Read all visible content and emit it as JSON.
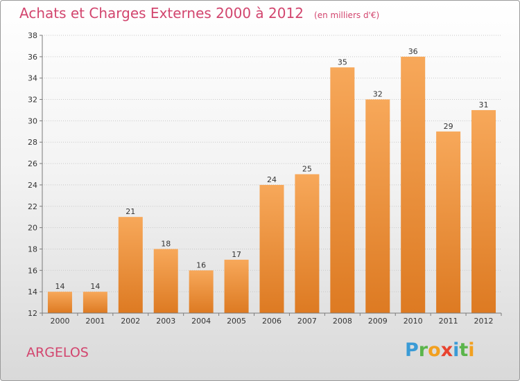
{
  "title": "Achats et Charges Externes 2000 à 2012",
  "unit_label": "(en milliers d'€)",
  "commune": "ARGELOS",
  "logo": {
    "letters": [
      {
        "ch": "P",
        "color": "#3a9bd6"
      },
      {
        "ch": "r",
        "color": "#5ab54b"
      },
      {
        "ch": "o",
        "color": "#f2a01f"
      },
      {
        "ch": "x",
        "color": "#e8432f"
      },
      {
        "ch": "i",
        "color": "#3a9bd6"
      },
      {
        "ch": "t",
        "color": "#5ab54b"
      },
      {
        "ch": "i",
        "color": "#f2a01f"
      }
    ]
  },
  "colors": {
    "title": "#d2456e",
    "bar_light": "#f7a85a",
    "bar_dark": "#dd7a22",
    "grid": "#c8c8c8",
    "axis": "#7a7a7a"
  },
  "chart_data": {
    "type": "bar",
    "categories": [
      "2000",
      "2001",
      "2002",
      "2003",
      "2004",
      "2005",
      "2006",
      "2007",
      "2008",
      "2009",
      "2010",
      "2011",
      "2012"
    ],
    "values": [
      14,
      14,
      21,
      18,
      16,
      17,
      24,
      25,
      35,
      32,
      36,
      29,
      31
    ],
    "ylim": [
      12,
      38
    ],
    "yticks": [
      12,
      14,
      16,
      18,
      20,
      22,
      24,
      26,
      28,
      30,
      32,
      34,
      36,
      38
    ],
    "grid": true,
    "data_labels": true
  }
}
